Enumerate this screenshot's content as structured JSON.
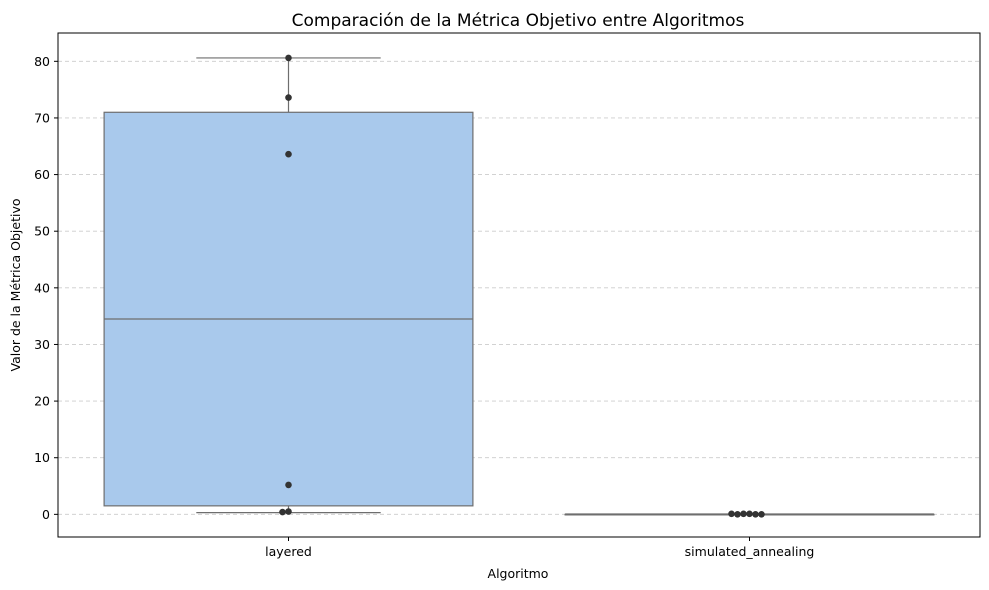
{
  "chart_data": {
    "type": "box",
    "title": "Comparación de la Métrica Objetivo entre Algoritmos",
    "xlabel": "Algoritmo",
    "ylabel": "Valor de la Métrica Objetivo",
    "categories": [
      "layered",
      "simulated_annealing"
    ],
    "ylim": [
      -4,
      85
    ],
    "yticks": [
      0,
      10,
      20,
      30,
      40,
      50,
      60,
      70,
      80
    ],
    "ytick_labels": [
      "0",
      "10",
      "20",
      "30",
      "40",
      "50",
      "60",
      "70",
      "80"
    ],
    "grid": "y-dashed",
    "box_color": "#a9c9ec",
    "edge_color": "#6e6e6e",
    "point_color": "#333333",
    "boxes": [
      {
        "name": "layered",
        "whisker_low": 0.3,
        "q1": 1.5,
        "median": 34.5,
        "q3": 71.0,
        "whisker_high": 80.6,
        "points": [
          0.5,
          0.4,
          5.2,
          63.6,
          73.6,
          80.6
        ]
      },
      {
        "name": "simulated_annealing",
        "whisker_low": 0.0,
        "q1": 0.0,
        "median": 0.0,
        "q3": 0.0,
        "whisker_high": 0.0,
        "points": [
          0.1,
          0.1,
          0.0,
          0.0,
          0.0,
          0.1
        ]
      }
    ]
  }
}
